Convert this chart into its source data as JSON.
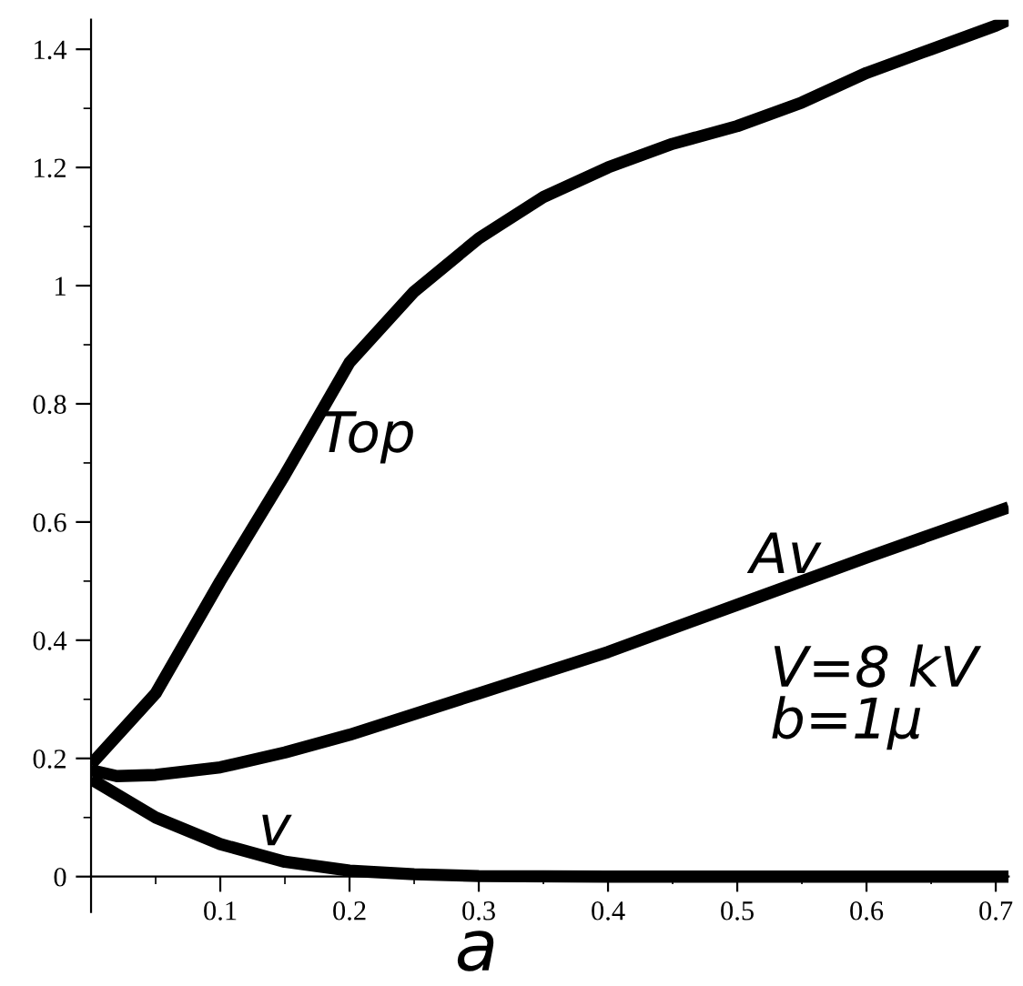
{
  "chart_data": {
    "type": "line",
    "xlabel": "a",
    "xlim": [
      0,
      0.71
    ],
    "ylim": [
      -0.06,
      1.45
    ],
    "xticks": [
      {
        "value": 0.05,
        "label": null
      },
      0.1,
      {
        "value": 0.15,
        "label": null
      },
      0.2,
      {
        "value": 0.25,
        "label": null
      },
      0.3,
      {
        "value": 0.35,
        "label": null
      },
      0.4,
      {
        "value": 0.45,
        "label": null
      },
      0.5,
      {
        "value": 0.55,
        "label": null
      },
      0.6,
      {
        "value": 0.65,
        "label": null
      },
      0.7
    ],
    "yticks": [
      0,
      {
        "value": 0.1,
        "label": null
      },
      0.2,
      {
        "value": 0.3,
        "label": null
      },
      0.4,
      {
        "value": 0.5,
        "label": null
      },
      0.6,
      {
        "value": 0.7,
        "label": null
      },
      0.8,
      {
        "value": 0.9,
        "label": null
      },
      1,
      {
        "value": 1.1,
        "label": null
      },
      1.2,
      {
        "value": 1.3,
        "label": null
      },
      1.4
    ],
    "grid": false,
    "legend": false,
    "marker": "none",
    "line_style": "solid",
    "annotations": [
      "V=8 kV\nb=1μ"
    ],
    "series": [
      {
        "name": "Top",
        "color": "#000000",
        "x": [
          0,
          0.05,
          0.1,
          0.15,
          0.2,
          0.25,
          0.3,
          0.35,
          0.4,
          0.45,
          0.5,
          0.55,
          0.6,
          0.65,
          0.7,
          0.71
        ],
        "values": [
          0.19,
          0.31,
          0.5,
          0.68,
          0.87,
          0.99,
          1.08,
          1.15,
          1.2,
          1.24,
          1.27,
          1.31,
          1.36,
          1.4,
          1.44,
          1.45
        ]
      },
      {
        "name": "Av",
        "color": "#000000",
        "x": [
          0,
          0.02,
          0.05,
          0.1,
          0.15,
          0.2,
          0.3,
          0.4,
          0.5,
          0.6,
          0.71
        ],
        "values": [
          0.18,
          0.17,
          0.172,
          0.185,
          0.21,
          0.24,
          0.31,
          0.38,
          0.46,
          0.54,
          0.625
        ]
      },
      {
        "name": "v",
        "color": "#000000",
        "x": [
          0,
          0.05,
          0.1,
          0.15,
          0.2,
          0.25,
          0.3,
          0.4,
          0.5,
          0.71
        ],
        "values": [
          0.165,
          0.1,
          0.055,
          0.025,
          0.01,
          0.004,
          0.001,
          0,
          0,
          0
        ]
      }
    ]
  }
}
